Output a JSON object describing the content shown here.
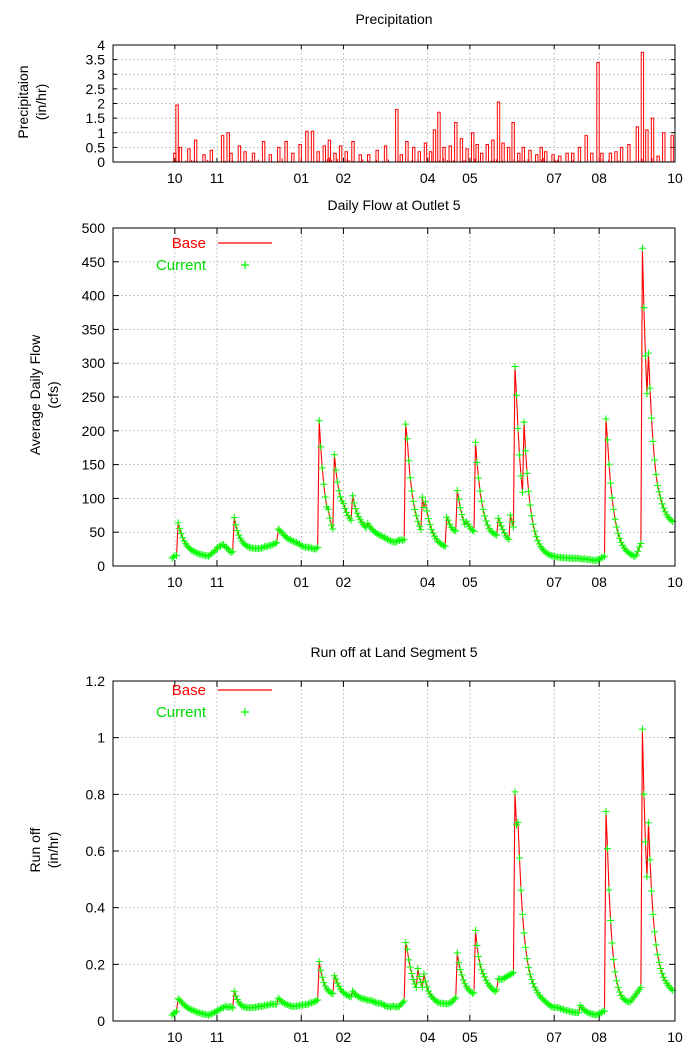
{
  "colors": {
    "base": "#ff0000",
    "current": "#00ff00",
    "axis": "#000000",
    "grid": "#9a9a9a"
  },
  "chart_data": [
    {
      "id": "precip",
      "type": "bar",
      "title": "Precipitation",
      "ylabel": [
        "Precipitaion",
        "(in/hr)"
      ],
      "ylim": [
        0,
        4
      ],
      "yticks": [
        0,
        0.5,
        1,
        1.5,
        2,
        2.5,
        3,
        3.5,
        4
      ],
      "ytick_labels": [
        "0",
        "0.5",
        "1",
        "1.5",
        "2",
        "2.5",
        "3",
        "3.5",
        "4"
      ],
      "xlim": [
        0,
        100
      ],
      "xticks": [
        0,
        11,
        18.5,
        33.5,
        41,
        56,
        63.5,
        78.5,
        86.5,
        100
      ],
      "xtick_labels": [
        "",
        "10",
        "11",
        "01",
        "02",
        "04",
        "05",
        "07",
        "08",
        "10"
      ],
      "grid": true,
      "series": [
        {
          "color": "#ff0000",
          "x": [
            11,
            11.4,
            12,
            13.5,
            14.7,
            16.2,
            17.5,
            19.5,
            20.5,
            21,
            22.5,
            23.5,
            25,
            26.8,
            28,
            29.5,
            30.8,
            32,
            33.3,
            34.5,
            35.5,
            36.5,
            37.6,
            38.5,
            39.5,
            40.5,
            41.5,
            42.7,
            44,
            45.5,
            47,
            48.5,
            50.5,
            51.3,
            52.3,
            53.5,
            54.5,
            55.6,
            56.5,
            57.2,
            58,
            58.9,
            60,
            61,
            62,
            63,
            64,
            64.8,
            65.6,
            66.6,
            67.6,
            68.6,
            69.4,
            70.4,
            71.2,
            72.2,
            73,
            74.2,
            75.4,
            76.2,
            77,
            78.3,
            79.5,
            80.8,
            81.8,
            83,
            84.2,
            85.2,
            86.3,
            87,
            88.5,
            89.5,
            90.5,
            91.8,
            93.3,
            94.2,
            95,
            96,
            97,
            98,
            99.5
          ],
          "values": [
            0.3,
            1.95,
            0.5,
            0.45,
            0.75,
            0.25,
            0.4,
            0.9,
            1.0,
            0.3,
            0.55,
            0.35,
            0.3,
            0.7,
            0.25,
            0.5,
            0.7,
            0.3,
            0.6,
            1.05,
            1.05,
            0.35,
            0.55,
            0.75,
            0.3,
            0.55,
            0.35,
            0.7,
            0.25,
            0.25,
            0.4,
            0.55,
            1.8,
            0.25,
            0.7,
            0.5,
            0.35,
            0.65,
            0.35,
            1.1,
            1.7,
            0.5,
            0.55,
            1.35,
            0.8,
            0.45,
            1.0,
            0.6,
            0.3,
            0.6,
            0.75,
            2.05,
            0.65,
            0.5,
            1.35,
            0.3,
            0.5,
            0.4,
            0.25,
            0.5,
            0.35,
            0.25,
            0.2,
            0.3,
            0.3,
            0.5,
            0.9,
            0.3,
            3.4,
            0.3,
            0.3,
            0.35,
            0.5,
            0.6,
            1.2,
            3.75,
            1.1,
            1.5,
            0.2,
            1.0,
            0.9
          ],
          "noise_start": 10.5,
          "noise_end": 99.8,
          "noise_level": 0.18
        }
      ]
    },
    {
      "id": "flow",
      "type": "line",
      "title": "Daily Flow at Outlet 5",
      "ylabel": [
        "Average Daily Flow",
        "(cfs)"
      ],
      "ylim": [
        0,
        500
      ],
      "yticks": [
        0,
        50,
        100,
        150,
        200,
        250,
        300,
        350,
        400,
        450,
        500
      ],
      "ytick_labels": [
        "0",
        "50",
        "100",
        "150",
        "200",
        "250",
        "300",
        "350",
        "400",
        "450",
        "500"
      ],
      "xlim": [
        0,
        100
      ],
      "xticks": [
        0,
        11,
        18.5,
        33.5,
        41,
        56,
        63.5,
        78.5,
        86.5,
        100
      ],
      "xtick_labels": [
        "",
        "10",
        "11",
        "01",
        "02",
        "04",
        "05",
        "07",
        "08",
        "10"
      ],
      "grid": true,
      "legend": {
        "position": "top-left"
      },
      "series": [
        {
          "name": "Base",
          "color": "#ff0000",
          "marker": "line"
        },
        {
          "name": "Current",
          "color": "#00ff00",
          "marker": "+"
        }
      ],
      "base_flow": 12,
      "baseflow_points": [
        [
          10.5,
          12
        ],
        [
          12,
          20
        ],
        [
          13.5,
          19
        ],
        [
          15,
          17
        ],
        [
          17,
          14
        ],
        [
          19.5,
          32
        ],
        [
          21,
          20
        ],
        [
          24,
          23
        ],
        [
          26,
          25
        ],
        [
          28,
          30
        ],
        [
          30,
          38
        ],
        [
          32,
          35
        ],
        [
          34,
          28
        ],
        [
          36,
          25
        ],
        [
          38,
          32
        ],
        [
          39,
          27
        ],
        [
          41,
          62
        ],
        [
          44,
          55
        ],
        [
          47,
          45
        ],
        [
          50,
          35
        ],
        [
          52,
          38
        ],
        [
          54,
          40
        ],
        [
          56,
          33
        ],
        [
          58,
          28
        ],
        [
          59.5,
          26
        ],
        [
          61.5,
          45
        ],
        [
          63,
          40
        ],
        [
          65,
          45
        ],
        [
          67,
          40
        ],
        [
          69,
          42
        ],
        [
          70,
          35
        ],
        [
          72,
          30
        ],
        [
          74,
          20
        ],
        [
          76,
          16
        ],
        [
          78,
          13
        ],
        [
          80,
          12
        ],
        [
          82,
          11
        ],
        [
          84,
          10
        ],
        [
          86,
          8
        ],
        [
          87.5,
          14
        ],
        [
          89,
          20
        ],
        [
          91,
          15
        ],
        [
          93,
          12
        ],
        [
          94.5,
          45
        ],
        [
          96,
          55
        ],
        [
          98,
          60
        ],
        [
          99.8,
          60
        ]
      ],
      "peaks": [
        [
          11.5,
          67
        ],
        [
          21.5,
          75
        ],
        [
          29.5,
          55
        ],
        [
          36.7,
          215
        ],
        [
          38.2,
          90
        ],
        [
          39.4,
          165
        ],
        [
          40.5,
          75
        ],
        [
          42.5,
          110
        ],
        [
          45.2,
          65
        ],
        [
          52.2,
          210
        ],
        [
          55,
          105
        ],
        [
          55.6,
          95
        ],
        [
          59.5,
          72
        ],
        [
          61.2,
          115
        ],
        [
          63,
          65
        ],
        [
          64.5,
          183
        ],
        [
          66.5,
          60
        ],
        [
          68.5,
          72
        ],
        [
          69.3,
          55
        ],
        [
          70.6,
          80
        ],
        [
          71.6,
          295
        ],
        [
          73.1,
          220
        ],
        [
          87.8,
          218
        ],
        [
          88.1,
          80
        ],
        [
          94.2,
          470
        ],
        [
          95.3,
          315
        ],
        [
          96.6,
          105
        ],
        [
          97.2,
          110
        ]
      ],
      "tau": 1.1
    },
    {
      "id": "runoff",
      "type": "line",
      "title": "Run off at Land Segment 5",
      "ylabel": [
        "Run off",
        "(in/hr)"
      ],
      "ylim": [
        0,
        1.2
      ],
      "yticks": [
        0,
        0.2,
        0.4,
        0.6,
        0.8,
        1.0,
        1.2
      ],
      "ytick_labels": [
        "0",
        "0.2",
        "0.4",
        "0.6",
        "0.8",
        "1",
        "1.2"
      ],
      "xlim": [
        0,
        100
      ],
      "xticks": [
        0,
        11,
        18.5,
        33.5,
        41,
        56,
        63.5,
        78.5,
        86.5,
        100
      ],
      "xtick_labels": [
        "",
        "10",
        "11",
        "01",
        "02",
        "04",
        "05",
        "07",
        "08",
        "10"
      ],
      "grid": true,
      "legend": {
        "position": "top-left"
      },
      "series": [
        {
          "name": "Base",
          "color": "#ff0000",
          "marker": "line"
        },
        {
          "name": "Current",
          "color": "#00ff00",
          "marker": "+"
        }
      ],
      "base_flow": 0.02,
      "baseflow_points": [
        [
          10.5,
          0.02
        ],
        [
          12,
          0.05
        ],
        [
          15,
          0.03
        ],
        [
          17,
          0.02
        ],
        [
          20,
          0.05
        ],
        [
          23,
          0.04
        ],
        [
          26,
          0.05
        ],
        [
          29,
          0.06
        ],
        [
          32,
          0.05
        ],
        [
          35,
          0.06
        ],
        [
          37,
          0.08
        ],
        [
          40,
          0.09
        ],
        [
          43,
          0.08
        ],
        [
          46,
          0.07
        ],
        [
          49,
          0.05
        ],
        [
          51,
          0.05
        ],
        [
          53,
          0.1
        ],
        [
          56,
          0.07
        ],
        [
          58,
          0.06
        ],
        [
          60,
          0.06
        ],
        [
          62,
          0.1
        ],
        [
          64,
          0.09
        ],
        [
          66,
          0.12
        ],
        [
          68,
          0.1
        ],
        [
          70,
          0.15
        ],
        [
          72,
          0.18
        ],
        [
          74,
          0.12
        ],
        [
          76,
          0.08
        ],
        [
          78,
          0.05
        ],
        [
          80,
          0.04
        ],
        [
          82,
          0.03
        ],
        [
          84,
          0.025
        ],
        [
          86,
          0.02
        ],
        [
          88,
          0.04
        ],
        [
          90,
          0.05
        ],
        [
          92,
          0.06
        ],
        [
          94,
          0.12
        ],
        [
          95.5,
          0.15
        ],
        [
          97,
          0.14
        ],
        [
          99.8,
          0.1
        ]
      ],
      "peaks": [
        [
          11.5,
          0.08
        ],
        [
          21.5,
          0.11
        ],
        [
          29.5,
          0.08
        ],
        [
          36.7,
          0.21
        ],
        [
          39.5,
          0.16
        ],
        [
          42.5,
          0.11
        ],
        [
          52.2,
          0.28
        ],
        [
          54.2,
          0.19
        ],
        [
          55.2,
          0.18
        ],
        [
          61.2,
          0.25
        ],
        [
          64.5,
          0.32
        ],
        [
          68.5,
          0.15
        ],
        [
          71.6,
          0.81
        ],
        [
          72.1,
          0.7
        ],
        [
          73.1,
          0.23
        ],
        [
          83,
          0.06
        ],
        [
          87.8,
          0.74
        ],
        [
          88.2,
          0.23
        ],
        [
          94.2,
          1.03
        ],
        [
          94.6,
          0.3
        ],
        [
          95.3,
          0.7
        ],
        [
          96.7,
          0.21
        ],
        [
          97.6,
          0.17
        ]
      ],
      "tau": 0.9
    }
  ]
}
